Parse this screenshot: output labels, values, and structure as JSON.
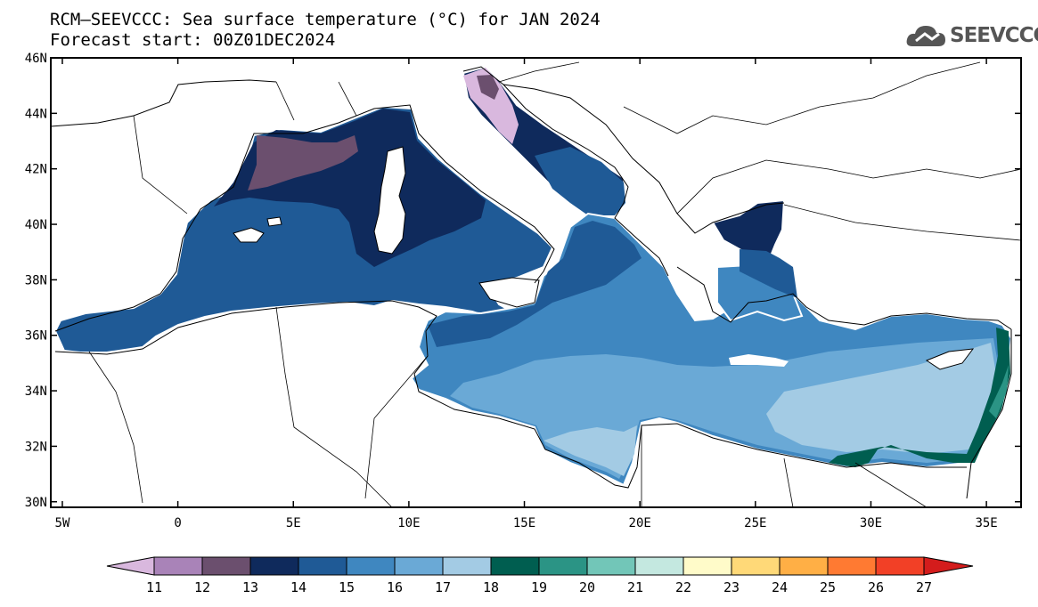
{
  "title": {
    "line1": "RCM–SEEVCCC: Sea surface temperature (°C) for JAN 2024",
    "line2": "Forecast start: 00Z01DEC2024"
  },
  "logo": {
    "text": "SEEVCCC",
    "icon": "cloud-icon",
    "color": "#555555"
  },
  "map": {
    "lon_range": [
      -5.5,
      36.5
    ],
    "lat_range": [
      29.8,
      46
    ],
    "lon_ticks": [
      {
        "value": -5,
        "label": "5W"
      },
      {
        "value": 0,
        "label": "0"
      },
      {
        "value": 5,
        "label": "5E"
      },
      {
        "value": 10,
        "label": "10E"
      },
      {
        "value": 15,
        "label": "15E"
      },
      {
        "value": 20,
        "label": "20E"
      },
      {
        "value": 25,
        "label": "25E"
      },
      {
        "value": 30,
        "label": "30E"
      },
      {
        "value": 35,
        "label": "35E"
      }
    ],
    "lat_ticks": [
      {
        "value": 46,
        "label": "46N"
      },
      {
        "value": 44,
        "label": "44N"
      },
      {
        "value": 42,
        "label": "42N"
      },
      {
        "value": 40,
        "label": "40N"
      },
      {
        "value": 38,
        "label": "38N"
      },
      {
        "value": 36,
        "label": "36N"
      },
      {
        "value": 34,
        "label": "34N"
      },
      {
        "value": 32,
        "label": "32N"
      },
      {
        "value": 30,
        "label": "30N"
      }
    ],
    "variable": "Sea surface temperature",
    "units": "°C"
  },
  "colorbar": {
    "labels": [
      "11",
      "12",
      "13",
      "14",
      "15",
      "16",
      "17",
      "18",
      "19",
      "20",
      "21",
      "22",
      "23",
      "24",
      "25",
      "26",
      "27"
    ],
    "colors": [
      "#d9b8de",
      "#a983b8",
      "#6b4f6e",
      "#0f2a5c",
      "#1f5a96",
      "#3f87c0",
      "#6aa9d6",
      "#a3cbe4",
      "#005e50",
      "#2b9485",
      "#72c6b8",
      "#c4e8e0",
      "#fffbc9",
      "#ffd978",
      "#ffaf45",
      "#ff7a32",
      "#f24026",
      "#d41c1c"
    ]
  }
}
